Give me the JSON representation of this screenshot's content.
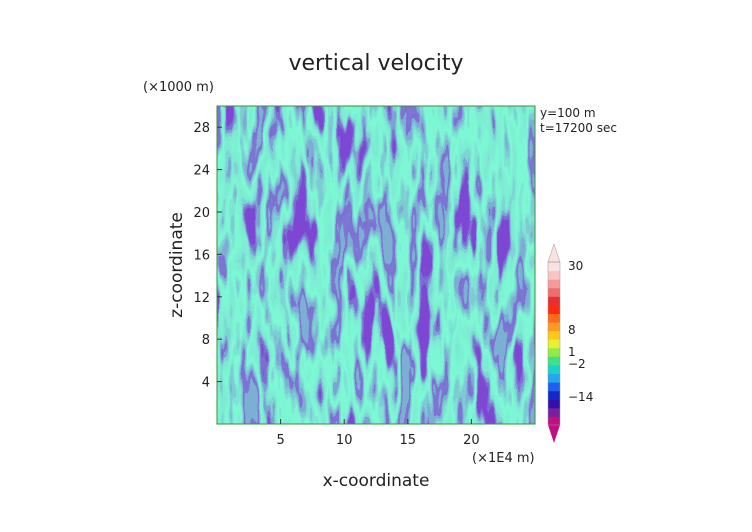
{
  "chart_data": {
    "type": "heatmap",
    "title": "vertical velocity",
    "xlabel": "x-coordinate",
    "ylabel": "z-coordinate",
    "x_unit": "(×1E4 m)",
    "y_unit": "(×1000 m)",
    "annotations": [
      "y=100 m",
      "t=17200 sec"
    ],
    "xlim": [
      0,
      25
    ],
    "ylim": [
      0,
      30
    ],
    "x_ticks": [
      5,
      10,
      15,
      20
    ],
    "y_ticks": [
      4,
      8,
      12,
      16,
      20,
      24,
      28
    ],
    "colorbar": {
      "labels": [
        "30",
        "8",
        "1",
        "−2",
        "−14"
      ],
      "colors": [
        "#c01080",
        "#7a1fa0",
        "#3410a8",
        "#1428c8",
        "#1e5ef0",
        "#23a8f0",
        "#1cd2c8",
        "#3ee088",
        "#90ea48",
        "#e8f030",
        "#ffc818",
        "#ff9a20",
        "#ff6a1a",
        "#ff2a10",
        "#e83030",
        "#ee6e6e",
        "#f49a9a",
        "#f8c4c4",
        "#fbe2e2"
      ]
    },
    "field_stats": {
      "min": -14,
      "max": 30
    }
  }
}
